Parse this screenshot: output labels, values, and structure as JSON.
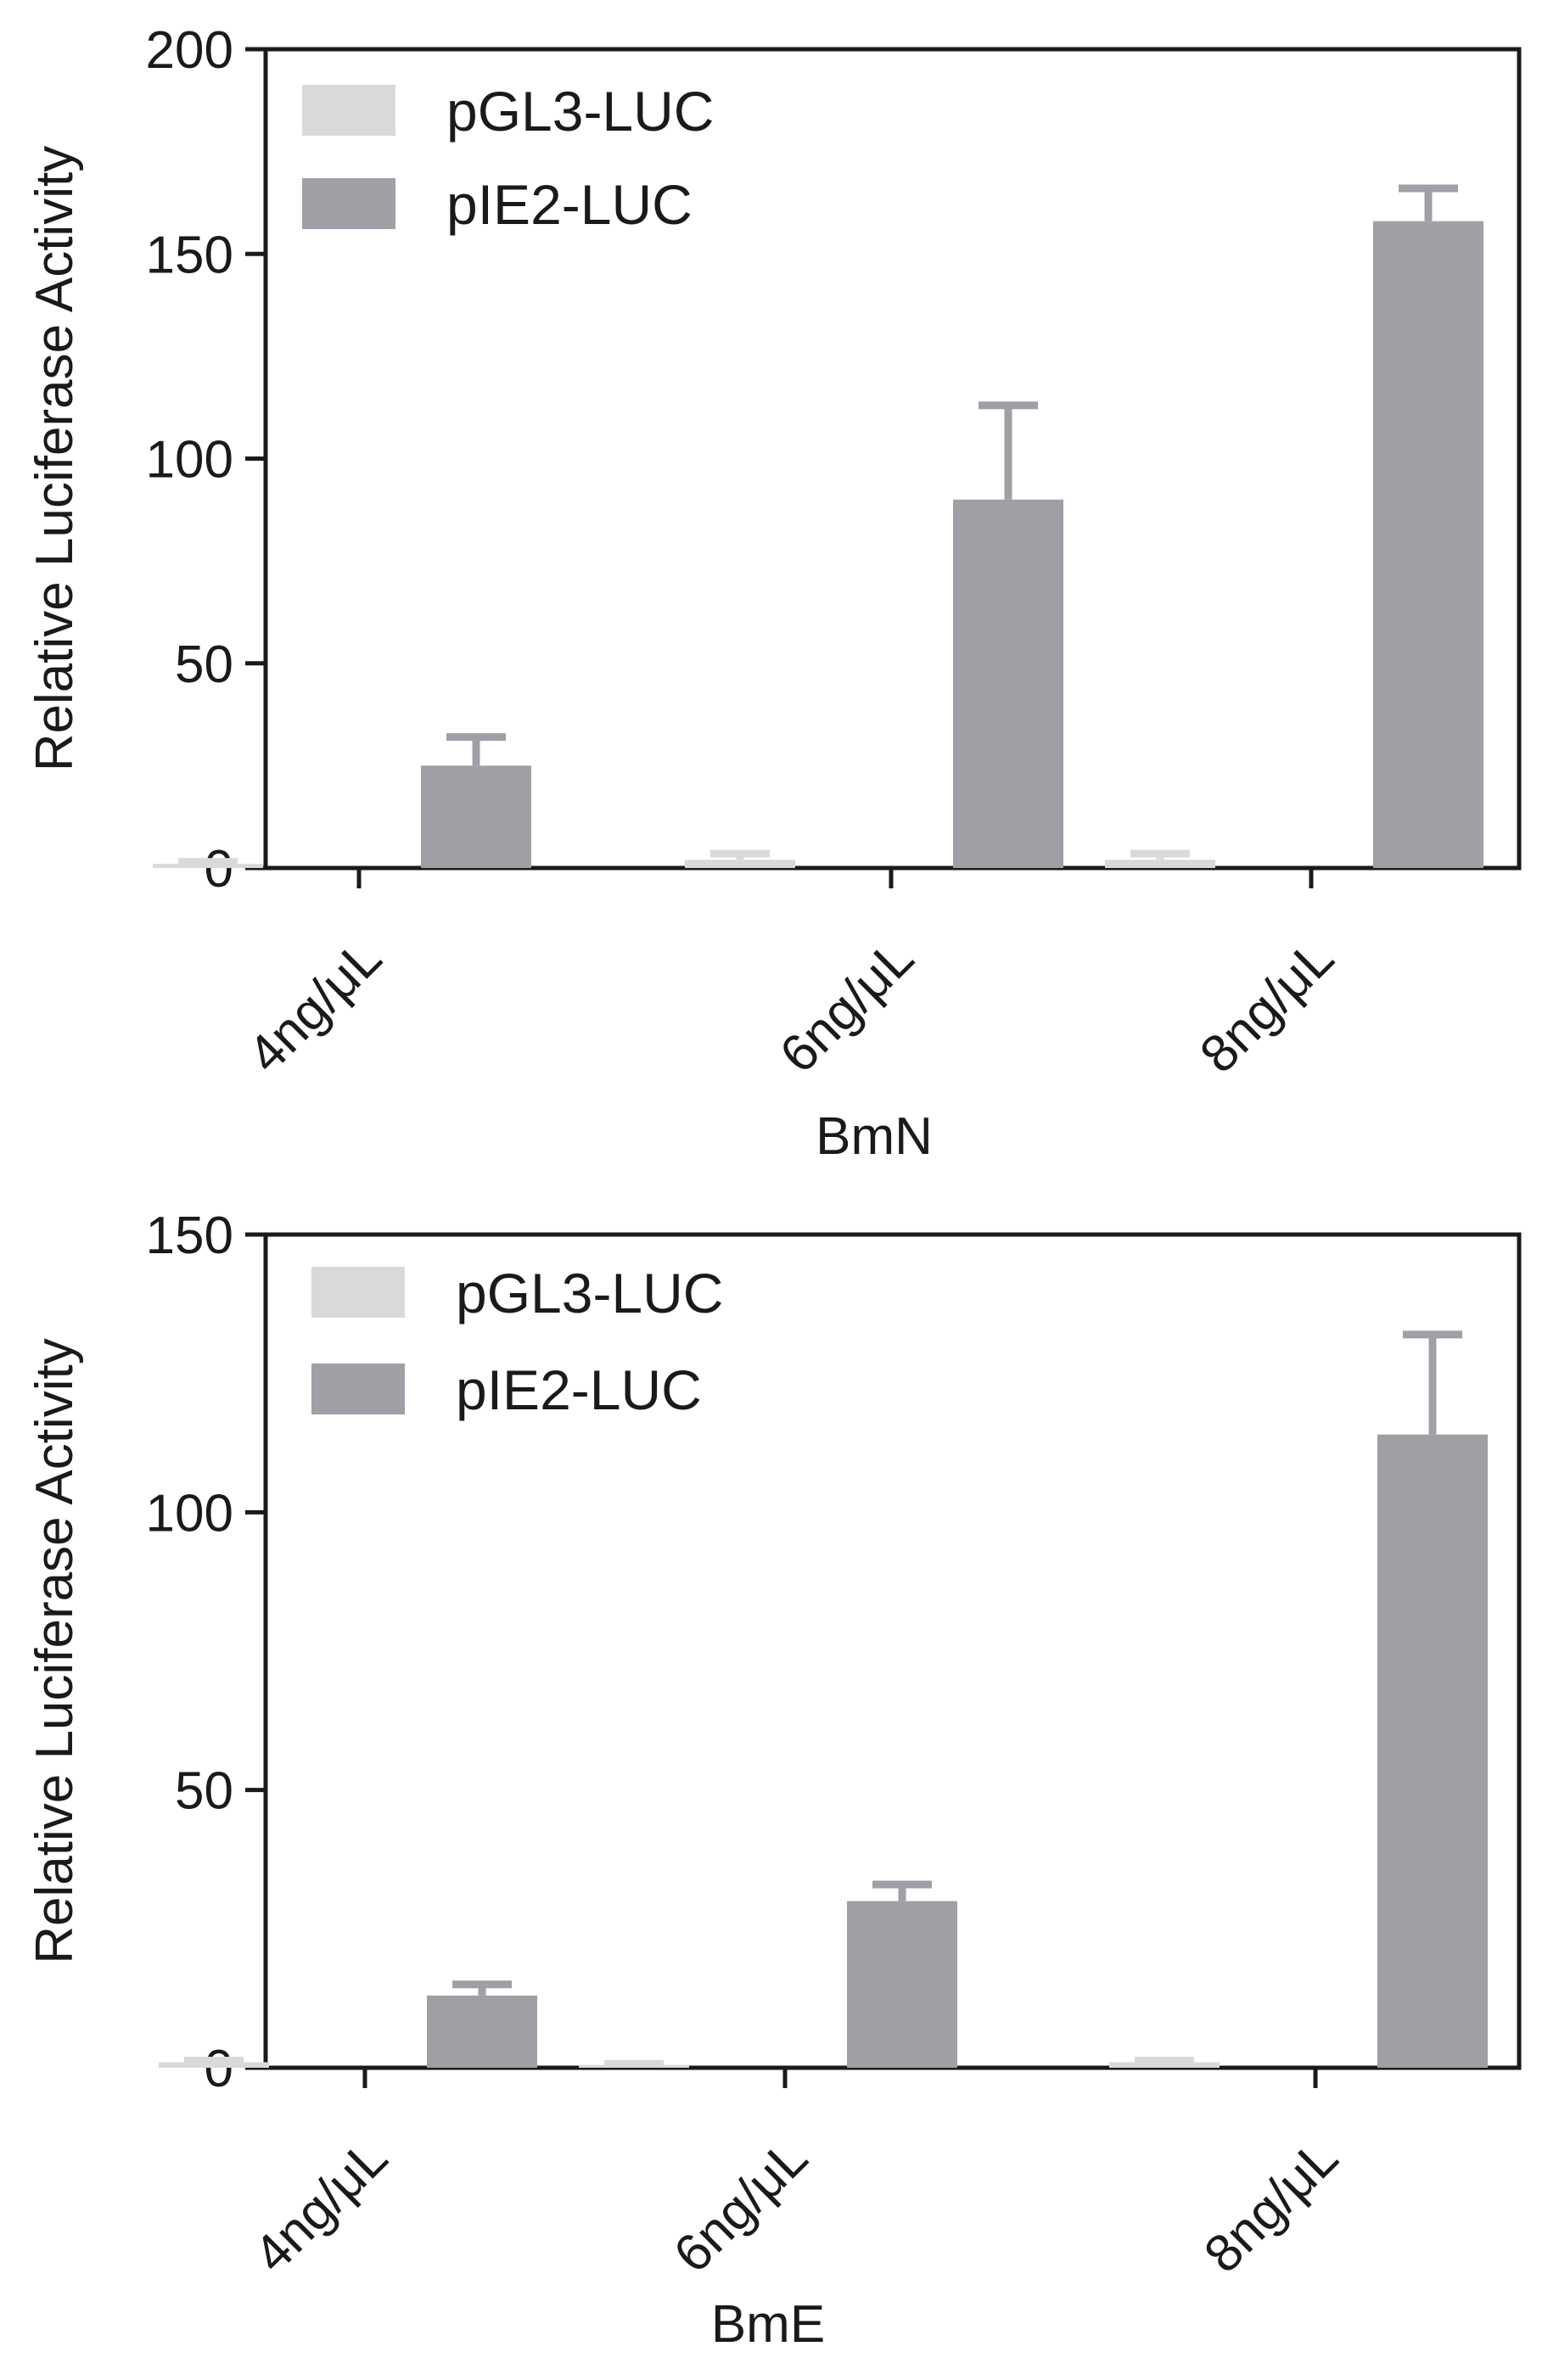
{
  "chart_data": [
    {
      "type": "bar",
      "title": "",
      "xlabel": "BmN",
      "ylabel": "Relative Luciferase Activity",
      "ylim": [
        0,
        200
      ],
      "yticks": [
        0,
        50,
        100,
        150,
        200
      ],
      "categories": [
        "4ng/μL",
        "6ng/μL",
        "8ng/μL"
      ],
      "legend_position": "top-left",
      "series": [
        {
          "name": "pGL3-LUC",
          "color": "#d9d9d9",
          "values": [
            1,
            2,
            2
          ],
          "errors": [
            0.5,
            1.5,
            1.5
          ]
        },
        {
          "name": "pIE2-LUC",
          "color": "#a09fa6",
          "values": [
            25,
            90,
            158
          ],
          "errors": [
            7,
            23,
            8
          ]
        }
      ]
    },
    {
      "type": "bar",
      "title": "",
      "xlabel": "BmE",
      "ylabel": "Relative Luciferase Activity",
      "ylim": [
        0,
        150
      ],
      "yticks": [
        0,
        50,
        100,
        150
      ],
      "categories": [
        "4ng/μL",
        "6ng/μL",
        "8ng/μL"
      ],
      "legend_position": "top-left",
      "series": [
        {
          "name": "pGL3-LUC",
          "color": "#d9d9d9",
          "values": [
            1,
            0.5,
            1
          ],
          "errors": [
            0.3,
            0.2,
            0.3
          ]
        },
        {
          "name": "pIE2-LUC",
          "color": "#a09fa6",
          "values": [
            13,
            30,
            114
          ],
          "errors": [
            2,
            3,
            18
          ]
        }
      ]
    }
  ]
}
